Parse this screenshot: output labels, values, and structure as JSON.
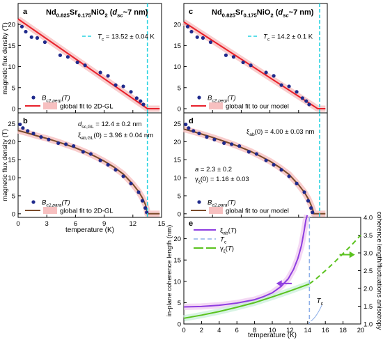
{
  "chart_data": [
    {
      "panel": "a",
      "type": "scatter",
      "title": "Nd0.825Sr0.175NiO2 (dsc~7 nm)",
      "ylabel": "magnetic flux density (T)",
      "xlim": [
        0,
        15
      ],
      "ylim": [
        -1,
        25
      ],
      "yticks": [
        0,
        5,
        10,
        15,
        20
      ],
      "tc_line": 13.52,
      "annotation": "Tc = 13.52 ± 0.04 K",
      "legend": [
        "Bc2,perp(T)",
        "global fit to 2D-GL"
      ],
      "series": [
        {
          "name": "Bc2,perp(T)",
          "kind": "points",
          "color": "#1f2a8c",
          "x": [
            0.4,
            0.8,
            1.4,
            2.0,
            2.8,
            4.4,
            5.2,
            6.2,
            7.0,
            8.6,
            9.4,
            10.2,
            11.0,
            11.8,
            12.4,
            12.8,
            13.1
          ],
          "y": [
            19.5,
            18.3,
            17.0,
            16.8,
            15.8,
            12.7,
            12.3,
            11.0,
            10.3,
            8.6,
            7.8,
            5.6,
            5.3,
            4.0,
            2.5,
            1.8,
            1.0
          ]
        },
        {
          "name": "global fit to 2D-GL",
          "kind": "fit",
          "color": "#e8202a",
          "x": [
            0,
            13.52,
            14.8
          ],
          "y": [
            21.3,
            0,
            0
          ]
        }
      ]
    },
    {
      "panel": "b",
      "type": "scatter",
      "xlabel": "temperature (K)",
      "ylabel": "magnetic flux density (T)",
      "xlim": [
        0,
        15
      ],
      "ylim": [
        -1,
        28
      ],
      "xticks": [
        0,
        3,
        6,
        9,
        12,
        15
      ],
      "yticks": [
        0,
        5,
        10,
        15,
        20,
        25
      ],
      "tc_line": 13.52,
      "annotations": [
        "dsc,GL = 12.4 ± 0.2 nm",
        "ξab,GL(0) = 3.96 ± 0.04 nm"
      ],
      "legend": [
        "Bc2,para(T)",
        "global fit to 2D-GL"
      ],
      "series": [
        {
          "name": "Bc2,para(T)",
          "kind": "points",
          "color": "#1f2a8c",
          "x": [
            0.2,
            0.5,
            1.0,
            1.6,
            2.4,
            3.2,
            4.2,
            5.0,
            5.8,
            6.8,
            7.6,
            8.6,
            9.4,
            10.2,
            11.0,
            11.8,
            12.6,
            13.0,
            13.3,
            13.45
          ],
          "y": [
            24.8,
            23.8,
            23.0,
            22.3,
            21.3,
            20.6,
            19.6,
            19.3,
            18.8,
            17.2,
            16.6,
            14.8,
            13.6,
            12.2,
            10.4,
            8.4,
            6.0,
            3.6,
            1.6,
            0.4
          ]
        },
        {
          "name": "global fit to 2D-GL",
          "kind": "fit",
          "color": "#7a4a2a",
          "x": [
            0,
            1,
            2,
            3,
            4,
            5,
            6,
            7,
            8,
            9,
            10,
            11,
            12,
            12.6,
            13.0,
            13.3,
            13.45,
            13.52,
            14.8
          ],
          "y": [
            23.1,
            22.4,
            21.6,
            20.9,
            20.1,
            19.2,
            18.3,
            17.2,
            16.0,
            14.6,
            13.0,
            11.0,
            8.2,
            6.2,
            4.4,
            2.6,
            1.2,
            0,
            0
          ]
        }
      ]
    },
    {
      "panel": "c",
      "type": "scatter",
      "title": "Nd0.825Sr0.175NiO2 (dsc~7 nm)",
      "xlim": [
        0,
        15
      ],
      "ylim": [
        -1,
        25
      ],
      "yticks": [
        0,
        5,
        10,
        15,
        20
      ],
      "tc_line": 14.2,
      "annotation": "Tc = 14.2 ± 0.1 K",
      "legend": [
        "Bc2,perp(T)",
        "global fit to our model"
      ],
      "series": [
        {
          "name": "Bc2,perp(T)",
          "kind": "points",
          "color": "#1f2a8c",
          "x": [
            0.4,
            0.8,
            1.4,
            2.0,
            2.8,
            4.4,
            5.2,
            6.2,
            7.0,
            8.6,
            9.4,
            10.2,
            11.0,
            11.8,
            12.4,
            12.8,
            13.1
          ],
          "y": [
            19.5,
            18.3,
            17.0,
            16.8,
            15.8,
            12.7,
            12.3,
            11.0,
            10.3,
            8.6,
            7.8,
            5.6,
            5.3,
            4.0,
            2.5,
            1.8,
            1.0
          ]
        },
        {
          "name": "global fit to our model",
          "kind": "fit",
          "color": "#e8202a",
          "x": [
            0,
            14.0,
            14.8
          ],
          "y": [
            20.6,
            0,
            0
          ]
        }
      ]
    },
    {
      "panel": "d",
      "type": "scatter",
      "xlim": [
        0,
        15
      ],
      "ylim": [
        -1,
        28
      ],
      "yticks": [
        0,
        5,
        10,
        15,
        20,
        25
      ],
      "tc_line": 14.2,
      "annotations": [
        "ξab(0) = 4.00 ±  0.03 nm",
        "a = 2.3 ± 0.2",
        "γξ(0) = 1.16 ± 0.03"
      ],
      "legend": [
        "Bc2,para(T)",
        "global fit to our model"
      ],
      "series": [
        {
          "name": "Bc2,para(T)",
          "kind": "points",
          "color": "#1f2a8c",
          "x": [
            0.2,
            0.5,
            1.0,
            1.6,
            2.4,
            3.2,
            4.2,
            5.0,
            5.8,
            6.8,
            7.6,
            8.6,
            9.4,
            10.2,
            11.0,
            11.8,
            12.6,
            13.0,
            13.3,
            13.45
          ],
          "y": [
            24.8,
            23.8,
            23.0,
            22.3,
            21.3,
            20.6,
            19.6,
            19.3,
            18.8,
            17.2,
            16.6,
            14.8,
            13.6,
            12.2,
            10.4,
            8.4,
            6.0,
            3.6,
            1.6,
            0.4
          ]
        },
        {
          "name": "global fit to our model",
          "kind": "fit",
          "color": "#7a4a2a",
          "x": [
            0,
            1,
            2,
            3,
            4,
            5,
            6,
            7,
            8,
            9,
            10,
            11,
            12,
            12.6,
            13.0,
            13.3,
            13.5,
            13.6,
            14.8
          ],
          "y": [
            23.5,
            22.8,
            22.0,
            21.2,
            20.3,
            19.4,
            18.4,
            17.3,
            16.0,
            14.6,
            12.9,
            10.9,
            8.0,
            6.0,
            4.2,
            2.4,
            1.0,
            0,
            0
          ]
        }
      ]
    },
    {
      "panel": "e",
      "type": "line",
      "xlabel": "temperature (K)",
      "ylabel": "in-plane coherence length (nm)",
      "y2label": "coherence length/fluctuations anisotropy",
      "xlim": [
        0,
        20
      ],
      "ylim": [
        0,
        25
      ],
      "y2lim": [
        1.0,
        4.0
      ],
      "xticks": [
        0,
        2,
        4,
        6,
        8,
        10,
        12,
        14,
        16,
        18,
        20
      ],
      "yticks": [
        0,
        5,
        10,
        15,
        20
      ],
      "y2ticks": [
        1.0,
        1.5,
        2.0,
        2.5,
        3.0,
        3.5,
        4.0
      ],
      "tc_line": 14.2,
      "tc_label": "Tc",
      "legend": [
        "ξab(T)",
        "Tc",
        "γξ(T)"
      ],
      "series": [
        {
          "name": "ξab(T)",
          "axis": "left",
          "color": "#8e3de0",
          "x": [
            0,
            2,
            4,
            6,
            8,
            9,
            10,
            11,
            11.8,
            12.4,
            12.9,
            13.3,
            13.6,
            13.8,
            13.95
          ],
          "y": [
            4.0,
            4.1,
            4.4,
            4.9,
            5.7,
            6.4,
            7.3,
            8.8,
            10.6,
            12.8,
            15.4,
            18.4,
            21.8,
            24.4,
            25.5
          ]
        },
        {
          "name": "γξ(T)",
          "axis": "right",
          "color": "#5ac21e",
          "x": [
            0,
            2,
            4,
            6,
            8,
            10,
            12,
            14,
            14.2
          ],
          "y": [
            1.16,
            1.25,
            1.35,
            1.47,
            1.6,
            1.76,
            1.93,
            2.11,
            2.13
          ]
        },
        {
          "name": "γξ(T) extrapolation",
          "axis": "right",
          "color": "#5ac21e",
          "dashed": true,
          "x": [
            14.2,
            15,
            16,
            17,
            18,
            19,
            20
          ],
          "y": [
            2.13,
            2.28,
            2.5,
            2.73,
            2.98,
            3.23,
            3.5
          ]
        }
      ]
    }
  ]
}
